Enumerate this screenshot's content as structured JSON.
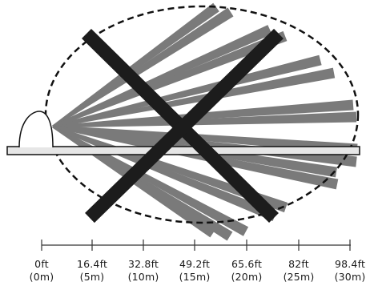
{
  "colors": {
    "beam": "#7a7a7a",
    "cross": "#1c1c1c",
    "outline": "#111111",
    "floor_fill": "#e6e6e6"
  },
  "distance_axis": {
    "ticks": [
      {
        "ft": "0ft",
        "m": "(0m)"
      },
      {
        "ft": "16.4ft",
        "m": "(5m)"
      },
      {
        "ft": "32.8ft",
        "m": "(10m)"
      },
      {
        "ft": "49.2ft",
        "m": "(15m)"
      },
      {
        "ft": "65.6ft",
        "m": "(20m)"
      },
      {
        "ft": "82ft",
        "m": "(25m)"
      },
      {
        "ft": "98.4ft",
        "m": "(30m)"
      }
    ]
  }
}
